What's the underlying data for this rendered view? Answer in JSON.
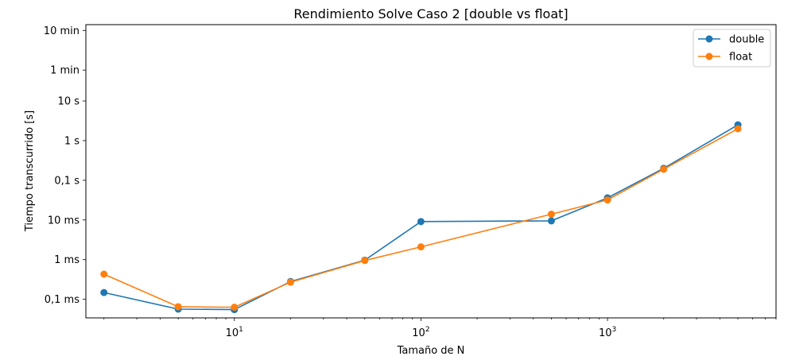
{
  "chart_data": {
    "type": "line",
    "title": "Rendimiento Solve Caso 2 [double vs float]",
    "xlabel": "Tamaño de N",
    "ylabel": "Tiempo transcurrido [s]",
    "x_scale": "log",
    "y_scale": "log",
    "xlim": [
      1.6,
      8000
    ],
    "ylim": [
      3.4e-05,
      840
    ],
    "x_ticks": [
      {
        "value": 10,
        "base": "10",
        "exp": "1"
      },
      {
        "value": 100,
        "base": "10",
        "exp": "2"
      },
      {
        "value": 1000,
        "base": "10",
        "exp": "3"
      }
    ],
    "y_ticks": [
      {
        "value": 0.0001,
        "label": "0,1 ms"
      },
      {
        "value": 0.001,
        "label": "1 ms"
      },
      {
        "value": 0.01,
        "label": "10 ms"
      },
      {
        "value": 0.1,
        "label": "0,1 s"
      },
      {
        "value": 1,
        "label": "1 s"
      },
      {
        "value": 10,
        "label": "10 s"
      },
      {
        "value": 60,
        "label": "1 min"
      },
      {
        "value": 600,
        "label": "10 min"
      }
    ],
    "grid": false,
    "legend_position": "top-right",
    "x": [
      2,
      5,
      10,
      20,
      50,
      100,
      500,
      1000,
      2000,
      5000
    ],
    "series": [
      {
        "name": "double",
        "color": "#1f77b4",
        "values": [
          0.000148,
          5.65e-05,
          5.5e-05,
          0.00028,
          0.00097,
          0.0091,
          0.0095,
          0.036,
          0.2,
          2.5
        ]
      },
      {
        "name": "float",
        "color": "#ff7f0e",
        "values": [
          0.00043,
          6.5e-05,
          6.3e-05,
          0.00027,
          0.00095,
          0.0021,
          0.014,
          0.032,
          0.19,
          2.0
        ]
      }
    ]
  }
}
